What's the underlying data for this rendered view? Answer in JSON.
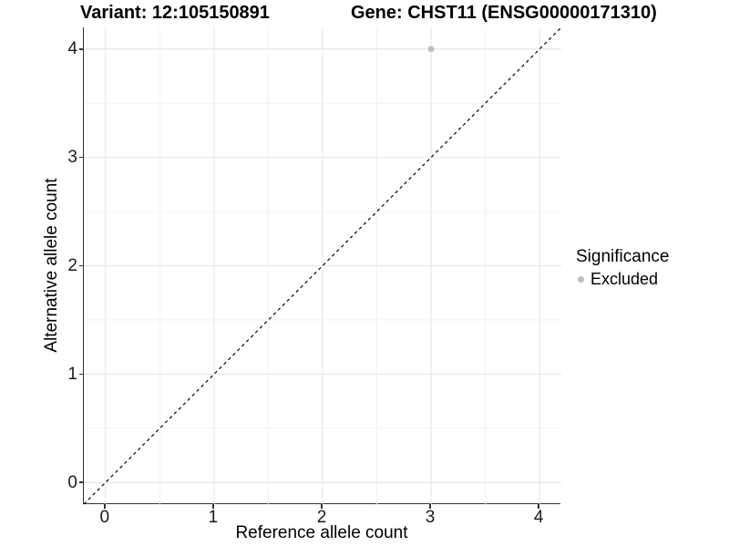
{
  "chart_data": {
    "type": "scatter",
    "title_left": "Variant: 12:105150891",
    "title_right": "Gene: CHST11 (ENSG00000171310)",
    "xlabel": "Reference allele count",
    "ylabel": "Alternative allele count",
    "xlim": [
      -0.2,
      4.2
    ],
    "ylim": [
      -0.2,
      4.2
    ],
    "xticks": [
      0,
      1,
      2,
      3,
      4
    ],
    "yticks": [
      0,
      1,
      2,
      3,
      4
    ],
    "grid": "major and minor gridlines on white background",
    "points": [
      {
        "x": 3,
        "y": 4,
        "series": "Excluded"
      }
    ],
    "abline": {
      "type": "identity y=x",
      "style": "dashed",
      "color": "#000000"
    },
    "legend": {
      "title": "Significance",
      "position": "right",
      "items": [
        {
          "label": "Excluded",
          "color": "#bebebe"
        }
      ]
    }
  },
  "colors": {
    "point": "#bebebe",
    "grid_major": "#e4e4e4",
    "grid_minor": "#f2f2f2",
    "axis_line": "#333333",
    "dashed_line": "#000000",
    "background": "#ffffff"
  }
}
